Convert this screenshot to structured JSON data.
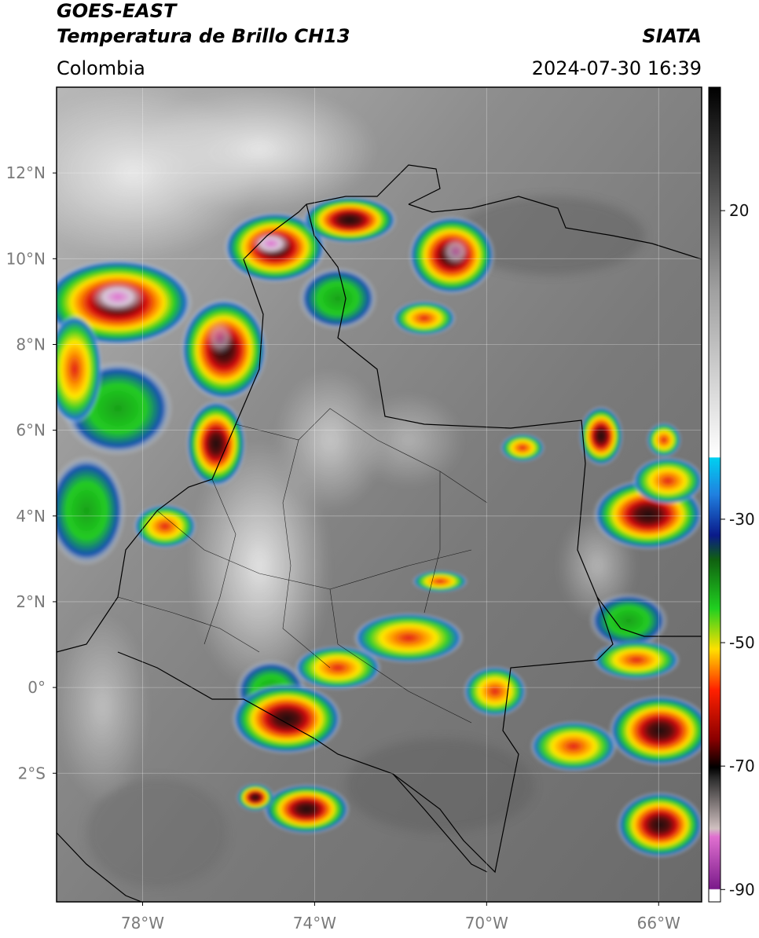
{
  "header": {
    "title": "GOES-EAST",
    "subtitle": "Temperatura de Brillo CH13",
    "region": "Colombia",
    "source": "SIATA",
    "timestamp": "2024-07-30 16:39"
  },
  "map": {
    "xlim": [
      -80,
      -65
    ],
    "ylim": [
      -5,
      14
    ],
    "xticks": [
      {
        "value": -78,
        "label": "78°W"
      },
      {
        "value": -74,
        "label": "74°W"
      },
      {
        "value": -70,
        "label": "70°W"
      },
      {
        "value": -66,
        "label": "66°W"
      }
    ],
    "yticks": [
      {
        "value": 12,
        "label": "12°N"
      },
      {
        "value": 10,
        "label": "10°N"
      },
      {
        "value": 8,
        "label": "8°N"
      },
      {
        "value": 6,
        "label": "6°N"
      },
      {
        "value": 4,
        "label": "4°N"
      },
      {
        "value": 2,
        "label": "2°N"
      },
      {
        "value": 0,
        "label": "0°"
      },
      {
        "value": -2,
        "label": "2°S"
      }
    ],
    "grid": true
  },
  "colorbar": {
    "limits": [
      -92,
      40
    ],
    "ticks": [
      20,
      -30,
      -50,
      -70,
      -90
    ]
  }
}
